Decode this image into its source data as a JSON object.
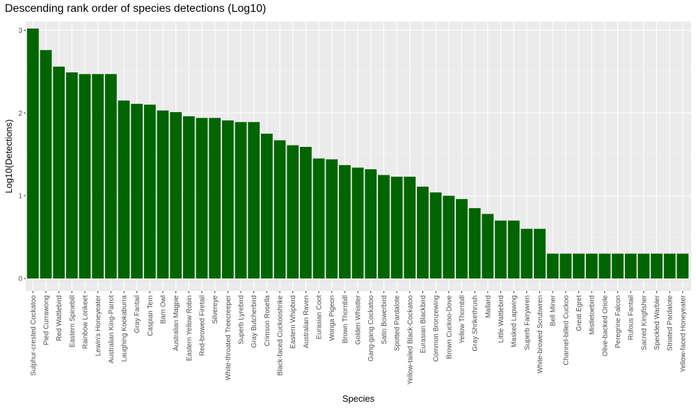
{
  "colors": {
    "bar": "#006400",
    "panel": "#ebebeb",
    "grid_major": "#ffffff",
    "grid_minor": "#f5f5f5",
    "tick_text": "#4d4d4d"
  },
  "chart_data": {
    "type": "bar",
    "title": "Descending rank order of species detections (Log10)",
    "xlabel": "Species",
    "ylabel": "Log10(Detections)",
    "ylim": [
      0,
      3.02
    ],
    "yticks": [
      0,
      1,
      2,
      3
    ],
    "grid": true,
    "categories": [
      "Sulphur-crested Cockatoo",
      "Pied Currawong",
      "Red Wattlebird",
      "Eastern Spinebill",
      "Rainbow Lorikeet",
      "Lewin's Honeyeater",
      "Australian King-Parrot",
      "Laughing Kookaburra",
      "Gray Fantail",
      "Caspian Tern",
      "Barn Owl",
      "Australian Magpie",
      "Eastern Yellow Robin",
      "Red-browed Firetail",
      "Silvereye",
      "White-throated Treecreeper",
      "Superb Lyrebird",
      "Gray Butcherbird",
      "Crimson Rosella",
      "Black-faced Cuckooshrike",
      "Eastern Whipbird",
      "Australian Raven",
      "Eurasian Coot",
      "Wonga Pigeon",
      "Brown Thornbill",
      "Golden Whistler",
      "Gang-gang Cockatoo",
      "Satin Bowerbird",
      "Spotted Pardalote",
      "Yellow-tailed Black-Cockatoo",
      "Eurasian Blackbird",
      "Common Bronzewing",
      "Brown Cuckoo-Dove",
      "Yellow Thornbill",
      "Gray Shrikethrush",
      "Mallard",
      "Little Wattlebird",
      "Masked Lapwing",
      "Superb Fairywren",
      "White-browed Scrubwren",
      "Bell Miner",
      "Channel-billed Cuckoo",
      "Great Egret",
      "Mistletoebird",
      "Olive-backed Oriole",
      "Peregrine Falcon",
      "Rufous Fantail",
      "Sacred Kingfisher",
      "Speckled Warbler",
      "Striated Pardalote",
      "Yellow-faced Honeyeater"
    ],
    "values": [
      3.02,
      2.76,
      2.56,
      2.49,
      2.47,
      2.47,
      2.47,
      2.15,
      2.11,
      2.1,
      2.03,
      2.01,
      1.96,
      1.94,
      1.94,
      1.91,
      1.89,
      1.89,
      1.75,
      1.67,
      1.61,
      1.59,
      1.45,
      1.44,
      1.37,
      1.34,
      1.32,
      1.25,
      1.23,
      1.23,
      1.11,
      1.04,
      1.0,
      0.96,
      0.85,
      0.78,
      0.7,
      0.7,
      0.6,
      0.6,
      0.3,
      0.3,
      0.3,
      0.3,
      0.3,
      0.3,
      0.3,
      0.3,
      0.3,
      0.3,
      0.3
    ]
  }
}
